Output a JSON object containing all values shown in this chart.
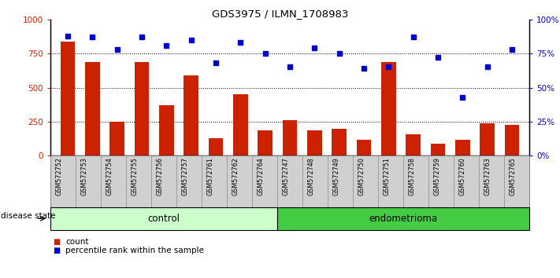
{
  "title": "GDS3975 / ILMN_1708983",
  "samples": [
    "GSM572752",
    "GSM572753",
    "GSM572754",
    "GSM572755",
    "GSM572756",
    "GSM572757",
    "GSM572761",
    "GSM572762",
    "GSM572764",
    "GSM572747",
    "GSM572748",
    "GSM572749",
    "GSM572750",
    "GSM572751",
    "GSM572758",
    "GSM572759",
    "GSM572760",
    "GSM572763",
    "GSM572765"
  ],
  "counts": [
    840,
    690,
    250,
    690,
    370,
    590,
    130,
    450,
    185,
    260,
    185,
    200,
    115,
    690,
    155,
    85,
    115,
    235,
    225
  ],
  "percentiles": [
    88,
    87,
    78,
    87,
    81,
    85,
    68,
    83,
    75,
    65,
    79,
    75,
    64,
    65,
    87,
    72,
    43,
    65,
    78
  ],
  "n_control": 9,
  "n_endometrioma": 10,
  "bar_color": "#cc2200",
  "dot_color": "#0000cc",
  "control_bg": "#ccffcc",
  "endometrioma_bg": "#44cc44",
  "tick_bg": "#d0d0d0",
  "ylim_left": [
    0,
    1000
  ],
  "ylim_right": [
    0,
    100
  ],
  "yticks_left": [
    0,
    250,
    500,
    750,
    1000
  ],
  "yticks_right": [
    0,
    25,
    50,
    75,
    100
  ],
  "ytick_labels_left": [
    "0",
    "250",
    "500",
    "750",
    "1000"
  ],
  "ytick_labels_right": [
    "0%",
    "25%",
    "50%",
    "75%",
    "100%"
  ],
  "grid_lines": [
    250,
    500,
    750
  ],
  "legend_count": "count",
  "legend_pct": "percentile rank within the sample",
  "disease_label": "disease state",
  "control_label": "control",
  "endometrioma_label": "endometrioma"
}
